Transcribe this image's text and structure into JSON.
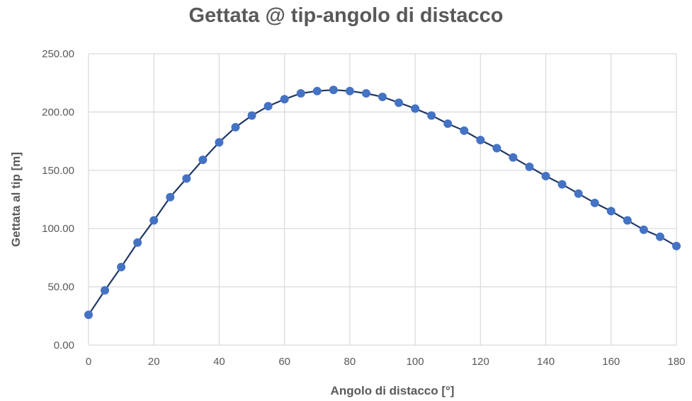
{
  "chart_data": {
    "type": "scatter",
    "title": "Gettata @ tip-angolo di distacco",
    "xlabel": "Angolo di  distacco [°]",
    "ylabel": "Gettata al tip [m]",
    "xlim": [
      0,
      180
    ],
    "ylim": [
      0,
      250
    ],
    "x_ticks": [
      "0",
      "20",
      "40",
      "60",
      "80",
      "100",
      "120",
      "140",
      "160",
      "180"
    ],
    "y_ticks": [
      "0.00",
      "50.00",
      "100.00",
      "150.00",
      "200.00",
      "250.00"
    ],
    "grid": true,
    "legend": "none",
    "series": [
      {
        "color": "#4472c4",
        "line_color": "#1f3864",
        "x": [
          0,
          5,
          10,
          15,
          20,
          25,
          30,
          35,
          40,
          45,
          50,
          55,
          60,
          65,
          70,
          75,
          80,
          85,
          90,
          95,
          100,
          105,
          110,
          115,
          120,
          125,
          130,
          135,
          140,
          145,
          150,
          155,
          160,
          165,
          170,
          175,
          180
        ],
        "y": [
          26,
          47,
          67,
          88,
          107,
          127,
          143,
          159,
          174,
          187,
          197,
          205,
          211,
          216,
          218,
          219,
          218,
          216,
          213,
          208,
          203,
          197,
          190,
          184,
          176,
          169,
          161,
          153,
          145,
          138,
          130,
          122,
          115,
          107,
          99,
          93,
          85
        ]
      }
    ]
  }
}
